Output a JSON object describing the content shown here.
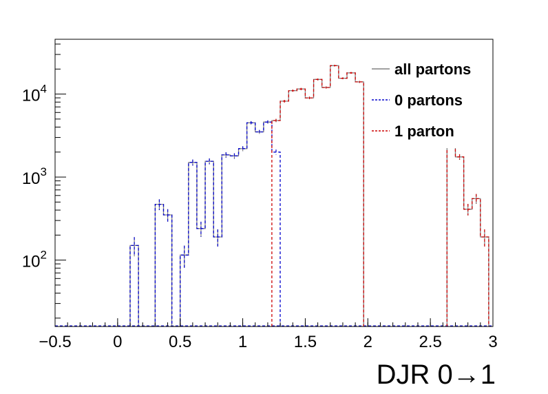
{
  "chart_data": {
    "type": "histogram",
    "xlabel": "DJR 0→1",
    "ylabel": "",
    "log_y": true,
    "xlim": [
      -0.5,
      3.0
    ],
    "ylim_log10": [
      1.2,
      4.66
    ],
    "bin_width": 0.0667,
    "x_ticks": [
      "−0.5",
      "0",
      "0.5",
      "1",
      "1.5",
      "2",
      "2.5",
      "3"
    ],
    "y_ticks": [
      {
        "base": "10",
        "exp": "2",
        "value": 100
      },
      {
        "base": "10",
        "exp": "3",
        "value": 1000
      },
      {
        "base": "10",
        "exp": "4",
        "value": 10000
      }
    ],
    "legend_position": "top-right",
    "series": [
      {
        "name": "all partons",
        "key": "all",
        "color": "#808080",
        "style": "solid",
        "bins": [
          {
            "x": 0.1,
            "y": 150
          },
          {
            "x": 0.167,
            "y": 0
          },
          {
            "x": 0.233,
            "y": 0
          },
          {
            "x": 0.3,
            "y": 470
          },
          {
            "x": 0.367,
            "y": 350
          },
          {
            "x": 0.433,
            "y": 0
          },
          {
            "x": 0.5,
            "y": 115
          },
          {
            "x": 0.567,
            "y": 1500
          },
          {
            "x": 0.633,
            "y": 240
          },
          {
            "x": 0.7,
            "y": 1550
          },
          {
            "x": 0.767,
            "y": 190
          },
          {
            "x": 0.833,
            "y": 1850
          },
          {
            "x": 0.9,
            "y": 1800
          },
          {
            "x": 0.967,
            "y": 2200
          },
          {
            "x": 1.033,
            "y": 4500
          },
          {
            "x": 1.1,
            "y": 3500
          },
          {
            "x": 1.167,
            "y": 4600
          },
          {
            "x": 1.233,
            "y": 4800
          },
          {
            "x": 1.3,
            "y": 8200
          },
          {
            "x": 1.367,
            "y": 11000
          },
          {
            "x": 1.433,
            "y": 11500
          },
          {
            "x": 1.5,
            "y": 9000
          },
          {
            "x": 1.567,
            "y": 15000
          },
          {
            "x": 1.633,
            "y": 12000
          },
          {
            "x": 1.7,
            "y": 22000
          },
          {
            "x": 1.767,
            "y": 15500
          },
          {
            "x": 1.833,
            "y": 18000
          },
          {
            "x": 1.9,
            "y": 14000
          },
          {
            "x": 2.633,
            "y": 2400
          },
          {
            "x": 2.7,
            "y": 1750
          },
          {
            "x": 2.767,
            "y": 410
          },
          {
            "x": 2.833,
            "y": 550
          },
          {
            "x": 2.9,
            "y": 190
          }
        ]
      },
      {
        "name": "0 partons",
        "key": "zero",
        "color": "#0000cc",
        "style": "dashed",
        "bins": [
          {
            "x": 0.1,
            "y": 150
          },
          {
            "x": 0.3,
            "y": 470
          },
          {
            "x": 0.367,
            "y": 350
          },
          {
            "x": 0.5,
            "y": 115
          },
          {
            "x": 0.567,
            "y": 1500
          },
          {
            "x": 0.633,
            "y": 240
          },
          {
            "x": 0.7,
            "y": 1550
          },
          {
            "x": 0.767,
            "y": 190
          },
          {
            "x": 0.833,
            "y": 1850
          },
          {
            "x": 0.9,
            "y": 1800
          },
          {
            "x": 0.967,
            "y": 2200
          },
          {
            "x": 1.033,
            "y": 4500
          },
          {
            "x": 1.1,
            "y": 3500
          },
          {
            "x": 1.167,
            "y": 4600
          },
          {
            "x": 1.233,
            "y": 2000
          }
        ]
      },
      {
        "name": "1 parton",
        "key": "one",
        "color": "#cc0000",
        "style": "dashed",
        "bins": [
          {
            "x": 1.233,
            "y": 4800
          },
          {
            "x": 1.3,
            "y": 8200
          },
          {
            "x": 1.367,
            "y": 11000
          },
          {
            "x": 1.433,
            "y": 11500
          },
          {
            "x": 1.5,
            "y": 9000
          },
          {
            "x": 1.567,
            "y": 15000
          },
          {
            "x": 1.633,
            "y": 12000
          },
          {
            "x": 1.7,
            "y": 22000
          },
          {
            "x": 1.767,
            "y": 15500
          },
          {
            "x": 1.833,
            "y": 18000
          },
          {
            "x": 1.9,
            "y": 14000
          },
          {
            "x": 2.633,
            "y": 2400
          },
          {
            "x": 2.7,
            "y": 1750
          },
          {
            "x": 2.767,
            "y": 410
          },
          {
            "x": 2.833,
            "y": 550
          },
          {
            "x": 2.9,
            "y": 190
          }
        ]
      }
    ]
  }
}
